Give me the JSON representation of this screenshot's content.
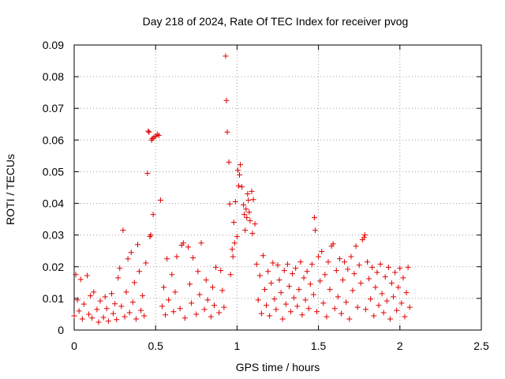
{
  "chart_data": {
    "type": "scatter",
    "title": "Day 218 of 2024, Rate Of TEC Index for receiver pvog",
    "xlabel": "GPS time / hours",
    "ylabel": "ROTI / TECUs",
    "xlim": [
      0,
      2.5
    ],
    "ylim": [
      0,
      0.09
    ],
    "x_ticks": [
      0,
      0.5,
      1,
      1.5,
      2,
      2.5
    ],
    "x_tick_labels": [
      "0",
      "0.5",
      "1",
      "1.5",
      "2",
      "2.5"
    ],
    "y_ticks": [
      0,
      0.01,
      0.02,
      0.03,
      0.04,
      0.05,
      0.06,
      0.07,
      0.08,
      0.09
    ],
    "y_tick_labels": [
      "0",
      "0.01",
      "0.02",
      "0.03",
      "0.04",
      "0.05",
      "0.06",
      "0.07",
      "0.08",
      "0.09"
    ],
    "grid": true,
    "marker": "plus",
    "color": "#e00000",
    "series": [
      {
        "name": "ROTI",
        "points": [
          [
            0.0,
            0.0045
          ],
          [
            0.01,
            0.0175
          ],
          [
            0.02,
            0.0095
          ],
          [
            0.03,
            0.006
          ],
          [
            0.04,
            0.016
          ],
          [
            0.05,
            0.0035
          ],
          [
            0.06,
            0.0082
          ],
          [
            0.08,
            0.0172
          ],
          [
            0.09,
            0.005
          ],
          [
            0.1,
            0.0108
          ],
          [
            0.11,
            0.0038
          ],
          [
            0.12,
            0.012
          ],
          [
            0.14,
            0.0065
          ],
          [
            0.15,
            0.0025
          ],
          [
            0.16,
            0.0092
          ],
          [
            0.18,
            0.004
          ],
          [
            0.19,
            0.0105
          ],
          [
            0.2,
            0.0068
          ],
          [
            0.21,
            0.0028
          ],
          [
            0.23,
            0.0115
          ],
          [
            0.24,
            0.0052
          ],
          [
            0.25,
            0.0083
          ],
          [
            0.26,
            0.0033
          ],
          [
            0.27,
            0.0165
          ],
          [
            0.28,
            0.0195
          ],
          [
            0.29,
            0.0075
          ],
          [
            0.3,
            0.0315
          ],
          [
            0.31,
            0.0042
          ],
          [
            0.32,
            0.012
          ],
          [
            0.33,
            0.0225
          ],
          [
            0.34,
            0.0055
          ],
          [
            0.35,
            0.0245
          ],
          [
            0.36,
            0.0088
          ],
          [
            0.37,
            0.015
          ],
          [
            0.38,
            0.0035
          ],
          [
            0.39,
            0.027
          ],
          [
            0.4,
            0.0185
          ],
          [
            0.41,
            0.0062
          ],
          [
            0.42,
            0.0108
          ],
          [
            0.43,
            0.0045
          ],
          [
            0.44,
            0.0212
          ],
          [
            0.45,
            0.0495
          ],
          [
            0.455,
            0.0628
          ],
          [
            0.46,
            0.0625
          ],
          [
            0.465,
            0.0295
          ],
          [
            0.47,
            0.03
          ],
          [
            0.475,
            0.06
          ],
          [
            0.48,
            0.0605
          ],
          [
            0.485,
            0.0365
          ],
          [
            0.49,
            0.0608
          ],
          [
            0.5,
            0.0612
          ],
          [
            0.51,
            0.0618
          ],
          [
            0.52,
            0.0615
          ],
          [
            0.53,
            0.041
          ],
          [
            0.54,
            0.0075
          ],
          [
            0.55,
            0.0135
          ],
          [
            0.56,
            0.0048
          ],
          [
            0.57,
            0.0225
          ],
          [
            0.58,
            0.0095
          ],
          [
            0.6,
            0.0175
          ],
          [
            0.61,
            0.0058
          ],
          [
            0.62,
            0.012
          ],
          [
            0.63,
            0.0232
          ],
          [
            0.65,
            0.0068
          ],
          [
            0.66,
            0.0268
          ],
          [
            0.67,
            0.0275
          ],
          [
            0.68,
            0.0038
          ],
          [
            0.7,
            0.0262
          ],
          [
            0.71,
            0.0145
          ],
          [
            0.72,
            0.0085
          ],
          [
            0.73,
            0.0228
          ],
          [
            0.75,
            0.005
          ],
          [
            0.76,
            0.0185
          ],
          [
            0.77,
            0.0112
          ],
          [
            0.78,
            0.0275
          ],
          [
            0.8,
            0.0065
          ],
          [
            0.81,
            0.0158
          ],
          [
            0.82,
            0.0095
          ],
          [
            0.84,
            0.0042
          ],
          [
            0.85,
            0.0135
          ],
          [
            0.86,
            0.0078
          ],
          [
            0.87,
            0.0198
          ],
          [
            0.89,
            0.0055
          ],
          [
            0.9,
            0.0188
          ],
          [
            0.91,
            0.0125
          ],
          [
            0.92,
            0.0072
          ],
          [
            0.93,
            0.0865
          ],
          [
            0.935,
            0.0725
          ],
          [
            0.94,
            0.0625
          ],
          [
            0.95,
            0.053
          ],
          [
            0.955,
            0.0398
          ],
          [
            0.96,
            0.0175
          ],
          [
            0.97,
            0.0255
          ],
          [
            0.975,
            0.0232
          ],
          [
            0.98,
            0.034
          ],
          [
            0.985,
            0.0275
          ],
          [
            0.99,
            0.0405
          ],
          [
            1.0,
            0.0295
          ],
          [
            1.005,
            0.0505
          ],
          [
            1.01,
            0.0455
          ],
          [
            1.015,
            0.049
          ],
          [
            1.02,
            0.0522
          ],
          [
            1.03,
            0.0452
          ],
          [
            1.04,
            0.0395
          ],
          [
            1.045,
            0.0365
          ],
          [
            1.05,
            0.0315
          ],
          [
            1.055,
            0.0382
          ],
          [
            1.06,
            0.0355
          ],
          [
            1.065,
            0.043
          ],
          [
            1.07,
            0.041
          ],
          [
            1.075,
            0.0372
          ],
          [
            1.08,
            0.0345
          ],
          [
            1.09,
            0.0438
          ],
          [
            1.095,
            0.0305
          ],
          [
            1.1,
            0.0412
          ],
          [
            1.11,
            0.0335
          ],
          [
            1.12,
            0.0208
          ],
          [
            1.13,
            0.0095
          ],
          [
            1.14,
            0.0172
          ],
          [
            1.15,
            0.0052
          ],
          [
            1.16,
            0.0235
          ],
          [
            1.17,
            0.0128
          ],
          [
            1.18,
            0.0078
          ],
          [
            1.19,
            0.0185
          ],
          [
            1.2,
            0.0045
          ],
          [
            1.21,
            0.0148
          ],
          [
            1.22,
            0.0212
          ],
          [
            1.23,
            0.0098
          ],
          [
            1.24,
            0.0065
          ],
          [
            1.25,
            0.0205
          ],
          [
            1.26,
            0.0158
          ],
          [
            1.27,
            0.0118
          ],
          [
            1.28,
            0.0035
          ],
          [
            1.29,
            0.0188
          ],
          [
            1.3,
            0.0082
          ],
          [
            1.31,
            0.0208
          ],
          [
            1.32,
            0.0138
          ],
          [
            1.33,
            0.0058
          ],
          [
            1.34,
            0.0178
          ],
          [
            1.35,
            0.0102
          ],
          [
            1.36,
            0.0195
          ],
          [
            1.37,
            0.0075
          ],
          [
            1.38,
            0.0128
          ],
          [
            1.39,
            0.0215
          ],
          [
            1.4,
            0.0048
          ],
          [
            1.41,
            0.0165
          ],
          [
            1.42,
            0.0095
          ],
          [
            1.43,
            0.0185
          ],
          [
            1.44,
            0.0068
          ],
          [
            1.45,
            0.0145
          ],
          [
            1.46,
            0.0208
          ],
          [
            1.47,
            0.0112
          ],
          [
            1.475,
            0.0355
          ],
          [
            1.48,
            0.0315
          ],
          [
            1.49,
            0.0058
          ],
          [
            1.5,
            0.0232
          ],
          [
            1.51,
            0.0155
          ],
          [
            1.52,
            0.0248
          ],
          [
            1.53,
            0.0085
          ],
          [
            1.54,
            0.0175
          ],
          [
            1.55,
            0.0042
          ],
          [
            1.56,
            0.0215
          ],
          [
            1.57,
            0.0128
          ],
          [
            1.58,
            0.0265
          ],
          [
            1.59,
            0.0272
          ],
          [
            1.6,
            0.0068
          ],
          [
            1.61,
            0.0188
          ],
          [
            1.62,
            0.0105
          ],
          [
            1.63,
            0.0225
          ],
          [
            1.64,
            0.0052
          ],
          [
            1.65,
            0.0158
          ],
          [
            1.66,
            0.0215
          ],
          [
            1.67,
            0.0088
          ],
          [
            1.68,
            0.0192
          ],
          [
            1.69,
            0.0035
          ],
          [
            1.7,
            0.0232
          ],
          [
            1.71,
            0.0125
          ],
          [
            1.72,
            0.0178
          ],
          [
            1.73,
            0.0265
          ],
          [
            1.74,
            0.0072
          ],
          [
            1.75,
            0.0205
          ],
          [
            1.76,
            0.0148
          ],
          [
            1.77,
            0.0285
          ],
          [
            1.78,
            0.0292
          ],
          [
            1.785,
            0.03
          ],
          [
            1.79,
            0.0065
          ],
          [
            1.8,
            0.0215
          ],
          [
            1.81,
            0.0162
          ],
          [
            1.82,
            0.0098
          ],
          [
            1.83,
            0.0198
          ],
          [
            1.84,
            0.0045
          ],
          [
            1.85,
            0.0135
          ],
          [
            1.86,
            0.0182
          ],
          [
            1.87,
            0.0078
          ],
          [
            1.88,
            0.0208
          ],
          [
            1.89,
            0.0115
          ],
          [
            1.9,
            0.0055
          ],
          [
            1.91,
            0.0168
          ],
          [
            1.92,
            0.0092
          ],
          [
            1.93,
            0.0198
          ],
          [
            1.94,
            0.0035
          ],
          [
            1.95,
            0.0148
          ],
          [
            1.96,
            0.0105
          ],
          [
            1.97,
            0.0182
          ],
          [
            1.98,
            0.0062
          ],
          [
            1.99,
            0.0135
          ],
          [
            2.0,
            0.0195
          ],
          [
            2.01,
            0.0085
          ],
          [
            2.02,
            0.0165
          ],
          [
            2.03,
            0.0042
          ],
          [
            2.04,
            0.0118
          ],
          [
            2.05,
            0.0198
          ],
          [
            2.06,
            0.0072
          ]
        ]
      }
    ]
  }
}
